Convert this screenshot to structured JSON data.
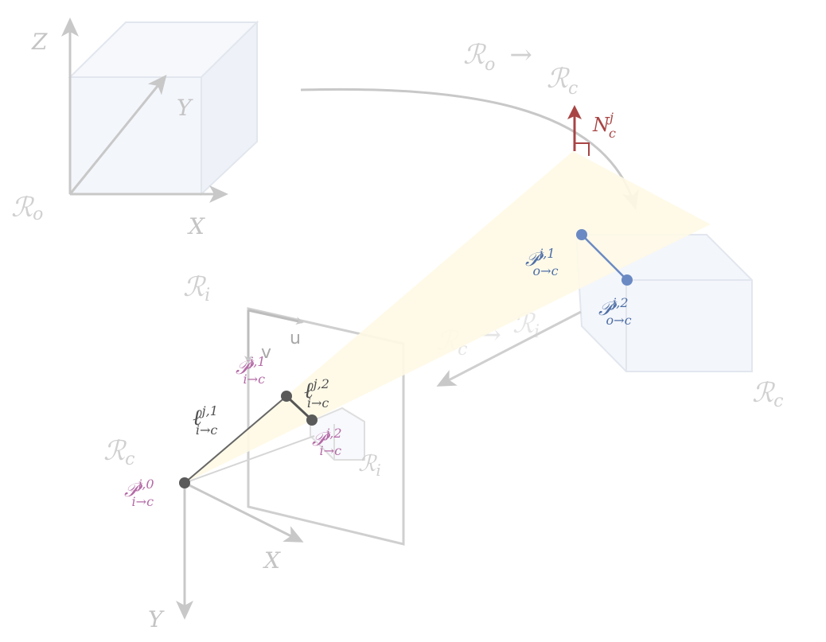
{
  "colors": {
    "projection": "#fffbe9",
    "line_2d": "#666666",
    "line_3d": "#6b8ac4",
    "normal": "#a84444",
    "faded": "#cfcfcf",
    "cube_fill": "#f3f6fb",
    "label_magenta": "#b46aa6",
    "label_blue": "#4f6fa6"
  },
  "frames": {
    "object_top": "ℛ",
    "object_top_sub": "o",
    "transform_left": "ℛ",
    "transform_left_sub": "o",
    "transform_arrow": "→",
    "transform_right": "ℛ",
    "transform_right_sub": "c",
    "image_label": "ℛ",
    "image_label_sub": "i",
    "camera_mid": "ℛ",
    "camera_mid_sub": "c",
    "camera_right": "ℛ",
    "camera_right_sub": "c",
    "image_small": "ℛ",
    "image_small_sub": "i",
    "faded_transform_left": "ℛ",
    "faded_transform_left_sub": "c",
    "faded_transform_arrow": "→",
    "faded_transform_right": "ℛ",
    "faded_transform_right_sub": "i"
  },
  "axes": {
    "object_z": "Z",
    "object_y": "Y",
    "object_x": "X",
    "camera_x": "X",
    "camera_y": "Y",
    "image_u": "u",
    "image_v": "v"
  },
  "normal": {
    "symbol": "N",
    "sup": "j",
    "sub": "c"
  },
  "points_2d": [
    {
      "symbol": "𝒫",
      "sup": "j,0",
      "sub": "i→c"
    },
    {
      "symbol": "𝒫",
      "sup": "j,1",
      "sub": "i→c"
    },
    {
      "symbol": "𝒫",
      "sup": "j,2",
      "sub": "i→c"
    }
  ],
  "lines_2d": [
    {
      "symbol": "ℓ",
      "sup": "j,1",
      "sub": "i→c"
    },
    {
      "symbol": "ℓ",
      "sup": "j,2",
      "sub": "i→c"
    }
  ],
  "points_3d": [
    {
      "symbol": "𝒫",
      "sup": "j,1",
      "sub": "o→c"
    },
    {
      "symbol": "𝒫",
      "sup": "j,2",
      "sub": "o→c"
    }
  ]
}
